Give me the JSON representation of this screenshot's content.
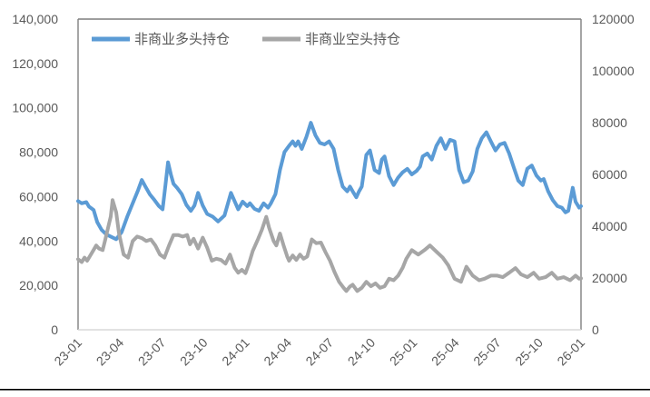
{
  "chart_data": {
    "type": "line",
    "title": "",
    "x_tick_labels": [
      "23-01",
      "23-04",
      "23-07",
      "23-10",
      "24-01",
      "24-04",
      "24-07",
      "24-10",
      "25-01",
      "25-04",
      "25-07",
      "25-10",
      "26-01"
    ],
    "x_range_months": [
      0,
      36
    ],
    "y_left_axis": {
      "min": 0,
      "max": 140000,
      "step": 20000,
      "tick_labels": [
        "0",
        "20,000",
        "40,000",
        "60,000",
        "80,000",
        "100,000",
        "120,000",
        "140,000"
      ]
    },
    "y_right_axis": {
      "min": 0,
      "max": 120000,
      "step": 20000,
      "tick_labels": [
        "0",
        "20000",
        "40000",
        "60000",
        "80000",
        "100000",
        "120000"
      ]
    },
    "legend": [
      {
        "label": "非商业多头持仓",
        "color": "#5B9BD5"
      },
      {
        "label": "非商业空头持仓",
        "color": "#A6A6A6"
      }
    ],
    "series": [
      {
        "name": "非商业多头持仓",
        "color": "#5B9BD5",
        "axis": "left",
        "points": [
          [
            0,
            58000
          ],
          [
            0.26,
            57000
          ],
          [
            0.59,
            57500
          ],
          [
            0.78,
            55500
          ],
          [
            1.11,
            54000
          ],
          [
            1.37,
            48500
          ],
          [
            1.69,
            45000
          ],
          [
            2.02,
            43000
          ],
          [
            2.34,
            42000
          ],
          [
            2.73,
            40800
          ],
          [
            3.12,
            44000
          ],
          [
            3.52,
            51000
          ],
          [
            3.91,
            57000
          ],
          [
            4.3,
            63000
          ],
          [
            4.56,
            67500
          ],
          [
            4.82,
            64500
          ],
          [
            5.14,
            61000
          ],
          [
            5.47,
            58400
          ],
          [
            5.79,
            55700
          ],
          [
            6.05,
            54300
          ],
          [
            6.25,
            65000
          ],
          [
            6.44,
            75500
          ],
          [
            6.64,
            70000
          ],
          [
            6.83,
            65800
          ],
          [
            7.1,
            63800
          ],
          [
            7.42,
            61100
          ],
          [
            7.75,
            56300
          ],
          [
            8.07,
            53600
          ],
          [
            8.33,
            56000
          ],
          [
            8.59,
            61700
          ],
          [
            8.92,
            56000
          ],
          [
            9.24,
            52200
          ],
          [
            9.63,
            51000
          ],
          [
            10.02,
            48800
          ],
          [
            10.48,
            51500
          ],
          [
            10.94,
            61700
          ],
          [
            11.46,
            54300
          ],
          [
            11.78,
            57700
          ],
          [
            12.11,
            55700
          ],
          [
            12.3,
            57000
          ],
          [
            12.63,
            54500
          ],
          [
            12.95,
            53600
          ],
          [
            13.28,
            57000
          ],
          [
            13.6,
            55000
          ],
          [
            13.8,
            57000
          ],
          [
            14.13,
            61100
          ],
          [
            14.45,
            72000
          ],
          [
            14.78,
            80100
          ],
          [
            15.1,
            82900
          ],
          [
            15.36,
            84900
          ],
          [
            15.56,
            82900
          ],
          [
            15.75,
            84900
          ],
          [
            16.01,
            81500
          ],
          [
            16.34,
            86900
          ],
          [
            16.66,
            93300
          ],
          [
            16.99,
            87600
          ],
          [
            17.31,
            84200
          ],
          [
            17.64,
            83500
          ],
          [
            17.97,
            84900
          ],
          [
            18.29,
            81500
          ],
          [
            18.62,
            72000
          ],
          [
            18.94,
            64500
          ],
          [
            19.27,
            62400
          ],
          [
            19.46,
            64500
          ],
          [
            19.66,
            62400
          ],
          [
            19.92,
            59700
          ],
          [
            20.11,
            62400
          ],
          [
            20.31,
            64500
          ],
          [
            20.63,
            78800
          ],
          [
            20.89,
            80800
          ],
          [
            21.22,
            72000
          ],
          [
            21.55,
            70600
          ],
          [
            21.74,
            76700
          ],
          [
            21.94,
            78100
          ],
          [
            22.26,
            69200
          ],
          [
            22.59,
            65200
          ],
          [
            22.91,
            68600
          ],
          [
            23.24,
            71000
          ],
          [
            23.57,
            72500
          ],
          [
            23.89,
            70000
          ],
          [
            24.22,
            71500
          ],
          [
            24.48,
            73500
          ],
          [
            24.67,
            78100
          ],
          [
            25,
            79400
          ],
          [
            25.32,
            76700
          ],
          [
            25.65,
            82900
          ],
          [
            25.97,
            86300
          ],
          [
            26.3,
            81500
          ],
          [
            26.62,
            85600
          ],
          [
            26.95,
            84900
          ],
          [
            27.27,
            72000
          ],
          [
            27.6,
            66500
          ],
          [
            27.93,
            67200
          ],
          [
            28.25,
            71300
          ],
          [
            28.58,
            81500
          ],
          [
            28.9,
            86300
          ],
          [
            29.23,
            89000
          ],
          [
            29.55,
            84900
          ],
          [
            29.88,
            80800
          ],
          [
            30.2,
            83500
          ],
          [
            30.53,
            84200
          ],
          [
            30.86,
            79400
          ],
          [
            31.18,
            73300
          ],
          [
            31.51,
            67200
          ],
          [
            31.83,
            65200
          ],
          [
            32.16,
            72600
          ],
          [
            32.48,
            74000
          ],
          [
            32.81,
            69500
          ],
          [
            33.13,
            67200
          ],
          [
            33.33,
            67900
          ],
          [
            33.65,
            62400
          ],
          [
            33.98,
            58400
          ],
          [
            34.31,
            55700
          ],
          [
            34.63,
            55000
          ],
          [
            34.89,
            52900
          ],
          [
            35.09,
            53600
          ],
          [
            35.41,
            64000
          ],
          [
            35.61,
            57700
          ],
          [
            35.87,
            55000
          ],
          [
            36,
            55700
          ]
        ]
      },
      {
        "name": "非商业空头持仓",
        "color": "#A6A6A6",
        "axis": "left",
        "points": [
          [
            0,
            31800
          ],
          [
            0.26,
            30500
          ],
          [
            0.46,
            32500
          ],
          [
            0.65,
            31100
          ],
          [
            0.98,
            34600
          ],
          [
            1.3,
            38000
          ],
          [
            1.5,
            36600
          ],
          [
            1.76,
            35900
          ],
          [
            1.95,
            40700
          ],
          [
            2.15,
            46100
          ],
          [
            2.34,
            51000
          ],
          [
            2.47,
            58400
          ],
          [
            2.73,
            52900
          ],
          [
            2.93,
            43400
          ],
          [
            3.26,
            33900
          ],
          [
            3.58,
            32500
          ],
          [
            3.91,
            40000
          ],
          [
            4.23,
            42000
          ],
          [
            4.56,
            41300
          ],
          [
            4.88,
            40000
          ],
          [
            5.21,
            40700
          ],
          [
            5.53,
            38000
          ],
          [
            5.86,
            33900
          ],
          [
            6.18,
            32500
          ],
          [
            6.51,
            38000
          ],
          [
            6.83,
            42700
          ],
          [
            7.16,
            42700
          ],
          [
            7.49,
            42000
          ],
          [
            7.81,
            42700
          ],
          [
            8.01,
            38500
          ],
          [
            8.27,
            41000
          ],
          [
            8.59,
            36600
          ],
          [
            8.92,
            41500
          ],
          [
            9.24,
            37000
          ],
          [
            9.57,
            31100
          ],
          [
            9.89,
            32000
          ],
          [
            10.22,
            31500
          ],
          [
            10.55,
            29800
          ],
          [
            10.87,
            33900
          ],
          [
            11.2,
            28000
          ],
          [
            11.46,
            25700
          ],
          [
            11.72,
            27000
          ],
          [
            11.98,
            25500
          ],
          [
            12.24,
            30000
          ],
          [
            12.5,
            35500
          ],
          [
            12.89,
            41000
          ],
          [
            13.15,
            45000
          ],
          [
            13.47,
            50900
          ],
          [
            13.67,
            46000
          ],
          [
            14,
            40000
          ],
          [
            14.19,
            38000
          ],
          [
            14.45,
            43400
          ],
          [
            14.71,
            38000
          ],
          [
            14.97,
            33000
          ],
          [
            15.1,
            31100
          ],
          [
            15.36,
            33500
          ],
          [
            15.62,
            31500
          ],
          [
            15.88,
            33900
          ],
          [
            16.14,
            32000
          ],
          [
            16.4,
            33000
          ],
          [
            16.73,
            40700
          ],
          [
            17.05,
            39000
          ],
          [
            17.38,
            39300
          ],
          [
            17.71,
            35000
          ],
          [
            18.03,
            31100
          ],
          [
            18.36,
            26000
          ],
          [
            18.68,
            21600
          ],
          [
            19.01,
            18900
          ],
          [
            19.2,
            17500
          ],
          [
            19.46,
            19500
          ],
          [
            19.66,
            20300
          ],
          [
            19.98,
            17500
          ],
          [
            20.31,
            18900
          ],
          [
            20.63,
            21600
          ],
          [
            20.96,
            19600
          ],
          [
            21.29,
            20900
          ],
          [
            21.61,
            18900
          ],
          [
            21.94,
            19600
          ],
          [
            22.26,
            23000
          ],
          [
            22.59,
            22300
          ],
          [
            22.91,
            24400
          ],
          [
            23.24,
            28000
          ],
          [
            23.5,
            32000
          ],
          [
            23.89,
            35900
          ],
          [
            24.35,
            33900
          ],
          [
            24.8,
            35900
          ],
          [
            25.19,
            38000
          ],
          [
            25.65,
            35200
          ],
          [
            26.1,
            32500
          ],
          [
            26.49,
            29100
          ],
          [
            26.95,
            23000
          ],
          [
            27.41,
            21600
          ],
          [
            27.8,
            28400
          ],
          [
            28.25,
            24400
          ],
          [
            28.71,
            22300
          ],
          [
            29.1,
            23000
          ],
          [
            29.55,
            24400
          ],
          [
            30.01,
            24400
          ],
          [
            30.4,
            23700
          ],
          [
            30.86,
            25700
          ],
          [
            31.31,
            27800
          ],
          [
            31.7,
            25000
          ],
          [
            32.16,
            23700
          ],
          [
            32.61,
            25700
          ],
          [
            33,
            23000
          ],
          [
            33.46,
            23700
          ],
          [
            33.91,
            25700
          ],
          [
            34.31,
            23000
          ],
          [
            34.76,
            23700
          ],
          [
            35.22,
            22300
          ],
          [
            35.61,
            24400
          ],
          [
            35.87,
            23000
          ],
          [
            36,
            23200
          ]
        ]
      }
    ],
    "layout_hints": {
      "legend_position": "top-inside",
      "grid": false,
      "plot_border_color": "#7F7F7F",
      "bottom_axis_color": "#D9D9D9",
      "axis_text_color": "#595959",
      "bottom_rule_color": "#000000"
    }
  }
}
